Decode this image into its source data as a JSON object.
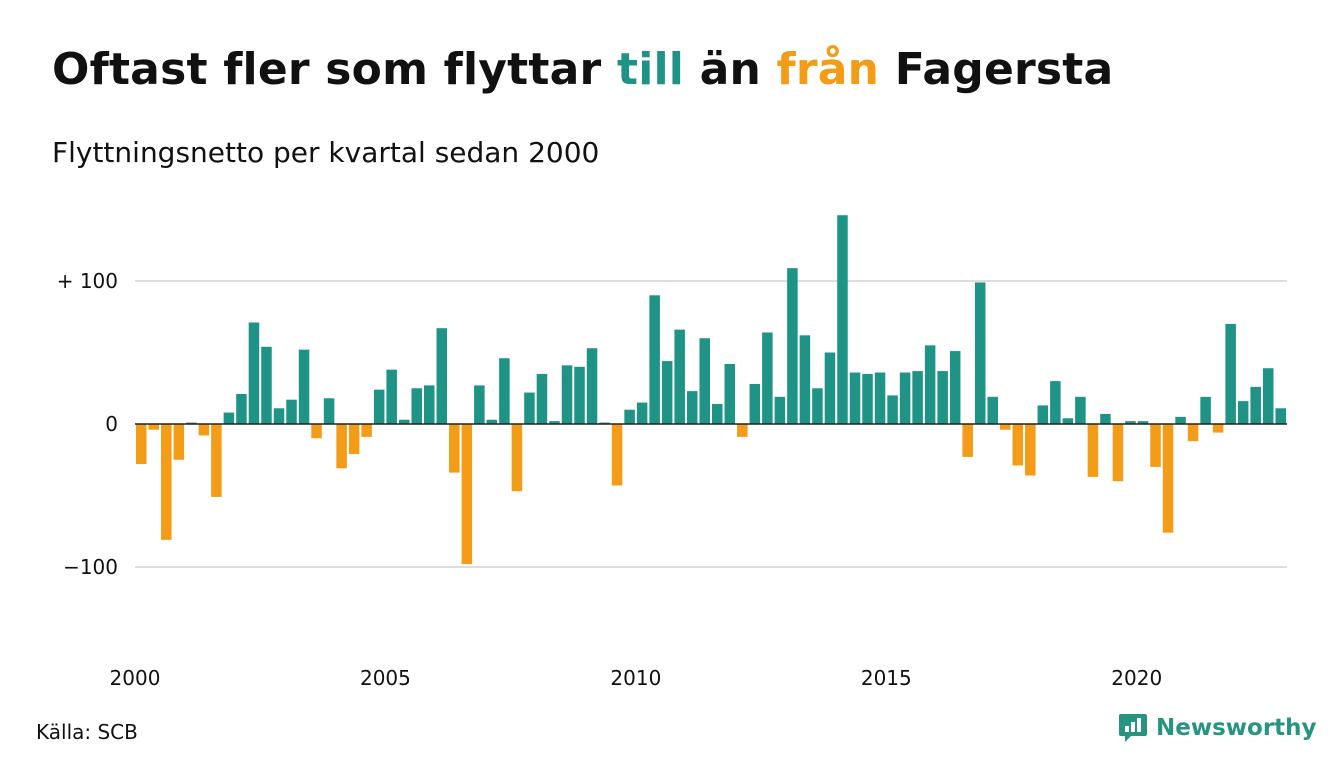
{
  "title": {
    "part1": "Oftast fler som flyttar ",
    "part2": "till",
    "part3": " än ",
    "part4": "från",
    "part5": " Fagersta"
  },
  "subtitle": "Flyttningsnetto per kvartal sedan 2000",
  "source": "Källa: SCB",
  "brand": {
    "name": "Newsworthy",
    "icon": "newsworthy-logo-icon"
  },
  "colors": {
    "positive": "#1F9486",
    "negative": "#F39C18",
    "text": "#111111",
    "grid": "#DDDDDD"
  },
  "chart_data": {
    "type": "bar",
    "title": "Oftast fler som flyttar till än från Fagersta",
    "subtitle": "Flyttningsnetto per kvartal sedan 2000",
    "x_start": "2000 Q1",
    "x_ticks": [
      "2000",
      "2005",
      "2010",
      "2015",
      "2020"
    ],
    "y_ticks": [
      {
        "value": 100,
        "label": "+ 100"
      },
      {
        "value": 0,
        "label": "0"
      },
      {
        "value": -100,
        "label": "−100"
      }
    ],
    "ylim": [
      -130,
      150
    ],
    "grid": true,
    "values": [
      -28,
      -4,
      -81,
      -25,
      1,
      -8,
      -51,
      8,
      21,
      71,
      54,
      11,
      17,
      52,
      -10,
      18,
      -31,
      -21,
      -9,
      24,
      38,
      3,
      25,
      27,
      67,
      -34,
      -98,
      27,
      3,
      46,
      -47,
      22,
      35,
      2,
      41,
      40,
      53,
      1,
      -43,
      10,
      15,
      90,
      44,
      66,
      23,
      60,
      14,
      42,
      -9,
      28,
      64,
      19,
      109,
      62,
      25,
      50,
      146,
      36,
      35,
      36,
      20,
      36,
      37,
      55,
      37,
      51,
      -23,
      99,
      19,
      -4,
      -29,
      -36,
      13,
      30,
      4,
      19,
      -37,
      7,
      -40,
      2,
      2,
      -30,
      -76,
      5,
      -12,
      19,
      -6,
      70,
      16,
      26,
      39,
      11
    ]
  }
}
